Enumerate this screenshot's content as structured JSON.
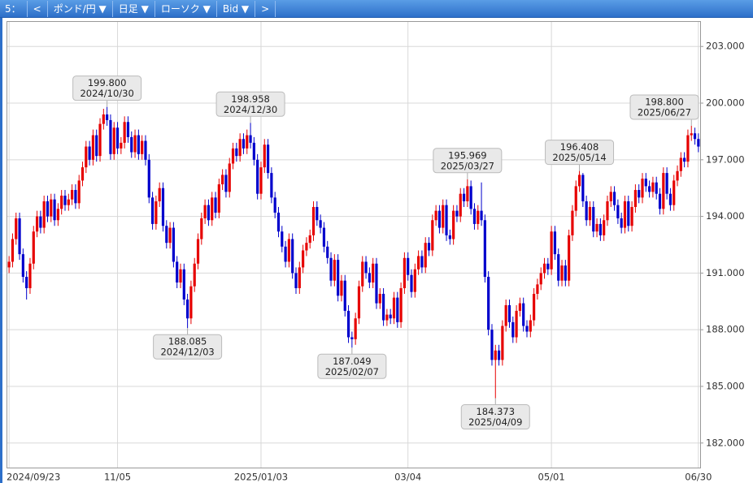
{
  "toolbar": [
    "5：",
    "<",
    "ポンド/円 ▼",
    "日足 ▼",
    "ローソク ▼",
    "Bid ▼",
    ">"
  ],
  "chart_data": {
    "type": "candlestick",
    "up_color": "#e60000",
    "down_color": "#0000cc",
    "grid": true,
    "ylim": [
      180.7,
      204.3
    ],
    "yticks": [
      {
        "value": 182,
        "label": "182.000"
      },
      {
        "value": 185,
        "label": "185.000"
      },
      {
        "value": 188,
        "label": "188.000"
      },
      {
        "value": 191,
        "label": "191.000"
      },
      {
        "value": 194,
        "label": "194.000"
      },
      {
        "value": 197,
        "label": "197.000"
      },
      {
        "value": 200,
        "label": "200.000"
      },
      {
        "value": 203,
        "label": "203.000"
      }
    ],
    "categories": [
      "2024/09/23",
      null,
      null,
      null,
      null,
      null,
      null,
      null,
      null,
      null,
      null,
      null,
      null,
      null,
      null,
      null,
      null,
      null,
      null,
      null,
      null,
      null,
      null,
      null,
      null,
      null,
      null,
      null,
      null,
      null,
      null,
      "11/05",
      null,
      null,
      null,
      null,
      null,
      null,
      null,
      null,
      null,
      null,
      null,
      null,
      null,
      null,
      null,
      null,
      null,
      null,
      null,
      null,
      null,
      null,
      null,
      null,
      null,
      null,
      null,
      null,
      null,
      null,
      null,
      null,
      null,
      null,
      null,
      null,
      null,
      null,
      null,
      null,
      "2025/01/03",
      null,
      null,
      null,
      null,
      null,
      null,
      null,
      null,
      null,
      null,
      null,
      null,
      null,
      null,
      null,
      null,
      null,
      null,
      null,
      null,
      null,
      null,
      null,
      null,
      null,
      null,
      null,
      null,
      null,
      null,
      null,
      null,
      null,
      null,
      null,
      null,
      null,
      null,
      null,
      null,
      null,
      "03/04",
      null,
      null,
      null,
      null,
      null,
      null,
      null,
      null,
      null,
      null,
      null,
      null,
      null,
      null,
      null,
      null,
      null,
      null,
      null,
      null,
      null,
      null,
      null,
      null,
      null,
      null,
      null,
      null,
      null,
      null,
      null,
      null,
      null,
      null,
      null,
      null,
      null,
      null,
      null,
      null,
      "05/01",
      null,
      null,
      null,
      null,
      null,
      null,
      null,
      null,
      null,
      null,
      null,
      null,
      null,
      null,
      null,
      null,
      null,
      null,
      null,
      null,
      null,
      null,
      null,
      null,
      null,
      null,
      null,
      null,
      null,
      null,
      null,
      null,
      null,
      null,
      null,
      null,
      null,
      null,
      null,
      null,
      null,
      "06/30"
    ],
    "open": [
      191.3,
      191.6,
      192.8,
      193.9,
      192.0,
      190.8,
      190.2,
      191.5,
      193.2,
      194.0,
      193.4,
      194.8,
      194.0,
      194.9,
      193.8,
      194.4,
      195.1,
      194.6,
      194.9,
      195.4,
      194.7,
      195.9,
      196.6,
      197.7,
      197.0,
      198.3,
      197.2,
      198.9,
      199.4,
      199.1,
      197.3,
      198.7,
      197.6,
      197.9,
      199.0,
      198.2,
      197.4,
      198.3,
      197.3,
      198.0,
      197.0,
      195.0,
      193.6,
      194.8,
      195.5,
      193.5,
      192.6,
      193.4,
      191.6,
      190.5,
      191.2,
      189.6,
      188.6,
      190.3,
      191.5,
      192.8,
      193.9,
      194.6,
      193.8,
      195.0,
      194.2,
      195.7,
      196.2,
      195.3,
      196.8,
      197.6,
      197.2,
      198.1,
      197.6,
      198.3,
      197.9,
      197.0,
      195.2,
      196.6,
      197.8,
      196.3,
      195.0,
      194.2,
      193.2,
      192.4,
      191.6,
      192.8,
      191.0,
      190.2,
      191.3,
      192.2,
      192.6,
      193.0,
      194.5,
      193.8,
      193.4,
      192.4,
      191.8,
      190.6,
      191.7,
      189.8,
      190.6,
      189.0,
      187.6,
      187.5,
      188.6,
      190.3,
      191.6,
      191.0,
      190.5,
      191.5,
      189.4,
      189.9,
      188.5,
      188.8,
      188.6,
      189.7,
      188.4,
      190.2,
      191.8,
      190.9,
      190.0,
      191.2,
      191.9,
      191.3,
      192.6,
      192.2,
      193.8,
      194.3,
      193.4,
      194.6,
      193.0,
      192.8,
      194.3,
      194.0,
      195.2,
      194.8,
      195.6,
      194.4,
      193.6,
      194.3,
      193.8,
      190.8,
      188.0,
      186.4,
      186.9,
      186.4,
      188.2,
      189.3,
      188.4,
      187.6,
      189.0,
      189.4,
      188.2,
      187.9,
      188.5,
      189.9,
      190.4,
      191.0,
      191.5,
      191.2,
      193.2,
      192.0,
      190.6,
      191.4,
      190.6,
      193.0,
      194.3,
      195.6,
      196.2,
      194.8,
      193.8,
      194.5,
      193.2,
      193.6,
      193.0,
      193.8,
      194.8,
      195.3,
      194.6,
      193.9,
      193.4,
      194.8,
      193.5,
      194.5,
      195.4,
      195.0,
      196.0,
      195.6,
      195.3,
      195.8,
      195.2,
      194.4,
      196.3,
      195.2,
      194.6,
      195.9,
      196.4,
      197.1,
      196.9,
      198.3,
      198.4,
      198.1
    ],
    "high": [
      191.9,
      193.1,
      194.2,
      194.2,
      192.3,
      191.1,
      191.8,
      193.5,
      194.3,
      194.3,
      195.1,
      195.1,
      195.2,
      195.2,
      194.7,
      195.4,
      195.4,
      195.2,
      195.7,
      195.7,
      196.2,
      196.9,
      198.0,
      198.0,
      198.6,
      198.6,
      199.2,
      199.7,
      199.8,
      199.4,
      199.0,
      199.0,
      198.2,
      199.3,
      199.3,
      198.5,
      198.6,
      198.6,
      198.3,
      198.3,
      197.3,
      195.3,
      195.1,
      195.8,
      195.8,
      193.8,
      193.7,
      193.7,
      191.9,
      191.5,
      191.5,
      189.9,
      190.6,
      191.8,
      193.1,
      194.2,
      194.9,
      194.9,
      195.3,
      195.3,
      196.0,
      196.5,
      196.5,
      197.1,
      197.9,
      197.9,
      198.4,
      198.4,
      198.6,
      198.958,
      198.2,
      197.3,
      196.9,
      198.1,
      198.1,
      196.6,
      195.3,
      194.5,
      193.5,
      192.7,
      193.1,
      193.1,
      191.3,
      191.6,
      192.5,
      192.9,
      193.3,
      194.8,
      194.8,
      194.1,
      193.7,
      192.7,
      192.1,
      192.0,
      192.0,
      190.9,
      190.9,
      189.3,
      187.9,
      188.9,
      190.6,
      191.9,
      191.9,
      191.3,
      191.8,
      191.8,
      190.2,
      190.2,
      189.1,
      189.1,
      190.0,
      190.0,
      190.5,
      192.1,
      192.1,
      191.2,
      191.5,
      192.2,
      192.2,
      192.9,
      192.9,
      194.1,
      194.6,
      194.6,
      194.9,
      194.9,
      193.3,
      194.6,
      194.6,
      195.5,
      195.5,
      195.969,
      195.9,
      194.7,
      194.6,
      195.8,
      194.1,
      191.1,
      188.3,
      187.2,
      187.2,
      188.5,
      189.6,
      189.6,
      188.7,
      189.3,
      189.7,
      189.7,
      188.5,
      188.8,
      190.2,
      190.7,
      191.3,
      191.8,
      191.8,
      193.5,
      193.5,
      192.3,
      191.7,
      191.7,
      193.3,
      194.6,
      195.9,
      196.408,
      196.3,
      195.1,
      194.8,
      194.8,
      193.9,
      193.9,
      194.1,
      195.1,
      195.6,
      195.6,
      194.9,
      194.2,
      195.1,
      195.1,
      194.8,
      195.7,
      195.7,
      196.3,
      196.3,
      195.9,
      196.1,
      196.1,
      195.5,
      196.6,
      196.6,
      195.5,
      196.2,
      196.7,
      197.4,
      197.4,
      198.6,
      198.8,
      198.7,
      198.4
    ],
    "low": [
      191.0,
      191.3,
      192.5,
      191.7,
      190.5,
      189.6,
      189.9,
      191.2,
      192.9,
      193.1,
      193.1,
      193.7,
      193.7,
      193.5,
      193.5,
      194.1,
      194.3,
      194.3,
      194.6,
      194.4,
      194.4,
      195.6,
      196.3,
      196.7,
      196.7,
      196.9,
      196.9,
      198.6,
      198.8,
      197.0,
      197.0,
      197.3,
      197.3,
      197.6,
      197.9,
      197.1,
      197.1,
      197.0,
      197.0,
      196.7,
      194.7,
      193.3,
      193.3,
      194.5,
      193.2,
      192.3,
      192.3,
      191.3,
      190.2,
      190.2,
      189.3,
      188.085,
      188.3,
      190.0,
      191.2,
      192.5,
      193.6,
      193.5,
      193.5,
      193.9,
      193.9,
      195.4,
      195.0,
      195.0,
      196.5,
      196.9,
      196.9,
      197.3,
      197.3,
      197.6,
      196.7,
      194.9,
      194.9,
      196.3,
      196.0,
      194.7,
      193.9,
      192.9,
      192.1,
      191.3,
      191.3,
      190.7,
      189.9,
      189.9,
      191.0,
      191.9,
      192.3,
      192.7,
      193.5,
      193.1,
      192.1,
      191.5,
      190.3,
      190.3,
      189.5,
      189.5,
      188.7,
      187.3,
      187.049,
      187.2,
      188.3,
      190.0,
      190.7,
      190.2,
      190.2,
      189.1,
      189.1,
      188.2,
      188.2,
      188.3,
      188.3,
      188.1,
      188.1,
      189.9,
      190.6,
      189.7,
      189.7,
      190.9,
      191.0,
      191.0,
      191.9,
      191.9,
      193.5,
      193.1,
      193.1,
      192.7,
      192.5,
      192.5,
      193.7,
      193.7,
      194.5,
      194.5,
      194.1,
      193.3,
      193.3,
      193.5,
      190.5,
      187.7,
      186.1,
      184.373,
      186.1,
      186.1,
      187.9,
      188.1,
      187.3,
      187.3,
      188.7,
      187.9,
      187.6,
      187.6,
      188.2,
      189.6,
      190.1,
      190.7,
      190.9,
      190.9,
      191.7,
      190.3,
      190.3,
      190.3,
      190.3,
      192.7,
      194.0,
      195.3,
      194.5,
      193.5,
      193.5,
      192.9,
      192.9,
      192.7,
      192.7,
      193.5,
      194.5,
      194.3,
      193.6,
      193.1,
      193.1,
      193.2,
      193.2,
      194.2,
      194.7,
      194.7,
      195.3,
      195.0,
      195.0,
      194.9,
      194.1,
      194.1,
      194.9,
      194.3,
      194.3,
      195.6,
      196.1,
      196.6,
      196.6,
      198.0,
      197.8,
      197.4
    ],
    "close": [
      191.6,
      192.8,
      193.9,
      192.0,
      190.8,
      190.2,
      191.5,
      193.2,
      194.0,
      193.4,
      194.8,
      194.0,
      194.9,
      193.8,
      194.4,
      195.1,
      194.6,
      194.9,
      195.4,
      194.7,
      195.9,
      196.6,
      197.7,
      197.0,
      198.3,
      197.2,
      198.9,
      199.4,
      199.1,
      197.3,
      198.7,
      197.6,
      197.9,
      199.0,
      198.2,
      197.4,
      198.3,
      197.3,
      198.0,
      197.0,
      195.0,
      193.6,
      194.8,
      195.5,
      193.5,
      192.6,
      193.4,
      191.6,
      190.5,
      191.2,
      189.6,
      188.6,
      190.3,
      191.5,
      192.8,
      193.9,
      194.6,
      193.8,
      195.0,
      194.2,
      195.7,
      196.2,
      195.3,
      196.8,
      197.6,
      197.2,
      198.1,
      197.6,
      198.3,
      197.9,
      197.0,
      195.2,
      196.6,
      197.8,
      196.3,
      195.0,
      194.2,
      193.2,
      192.4,
      191.6,
      192.8,
      191.0,
      190.2,
      191.3,
      192.2,
      192.6,
      193.0,
      194.5,
      193.8,
      193.4,
      192.4,
      191.8,
      190.6,
      191.7,
      189.8,
      190.6,
      189.0,
      187.6,
      187.5,
      188.6,
      190.3,
      191.6,
      191.0,
      190.5,
      191.5,
      189.4,
      189.9,
      188.5,
      188.8,
      188.6,
      189.7,
      188.4,
      190.2,
      191.8,
      190.9,
      190.0,
      191.2,
      191.9,
      191.3,
      192.6,
      192.2,
      193.8,
      194.3,
      193.4,
      194.6,
      193.0,
      192.8,
      194.3,
      194.0,
      195.2,
      194.8,
      195.6,
      194.4,
      193.6,
      194.3,
      193.8,
      190.8,
      188.0,
      186.4,
      186.9,
      186.4,
      188.2,
      189.3,
      188.4,
      187.6,
      189.0,
      189.4,
      188.2,
      187.9,
      188.5,
      189.9,
      190.4,
      191.0,
      191.5,
      191.2,
      193.2,
      192.0,
      190.6,
      191.4,
      190.6,
      193.0,
      194.3,
      195.6,
      196.2,
      194.8,
      193.8,
      194.5,
      193.2,
      193.6,
      193.0,
      193.8,
      194.8,
      195.3,
      194.6,
      193.9,
      193.4,
      194.8,
      193.5,
      194.5,
      195.4,
      195.0,
      196.0,
      195.6,
      195.3,
      195.8,
      195.2,
      194.4,
      196.3,
      195.2,
      194.6,
      195.9,
      196.4,
      197.1,
      196.9,
      198.3,
      198.4,
      198.1,
      197.7
    ],
    "annotations": [
      {
        "value": 199.8,
        "label": "199.800",
        "date": "2024/10/30"
      },
      {
        "value": 188.085,
        "label": "188.085",
        "date": "2024/12/03"
      },
      {
        "value": 198.958,
        "label": "198.958",
        "date": "2024/12/30"
      },
      {
        "value": 187.049,
        "label": "187.049",
        "date": "2025/02/07"
      },
      {
        "value": 195.969,
        "label": "195.969",
        "date": "2025/03/27"
      },
      {
        "value": 184.373,
        "label": "184.373",
        "date": "2025/04/09"
      },
      {
        "value": 196.408,
        "label": "196.408",
        "date": "2025/05/14"
      },
      {
        "value": 198.8,
        "label": "198.800",
        "date": "2025/06/27"
      }
    ]
  }
}
